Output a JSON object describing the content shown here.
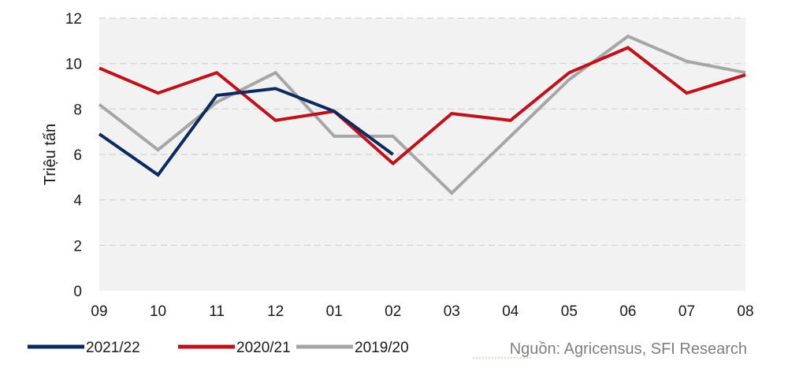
{
  "chart_data": {
    "type": "line",
    "ylabel": "Triệu tấn",
    "ylim": [
      0,
      12
    ],
    "yticks": [
      "0",
      "2",
      "4",
      "6",
      "8",
      "10",
      "12"
    ],
    "categories": [
      "09",
      "10",
      "11",
      "12",
      "01",
      "02",
      "03",
      "04",
      "05",
      "06",
      "07",
      "08"
    ],
    "grid": "horizontal-dashed",
    "legend_position": "bottom-left",
    "series": [
      {
        "name": "2021/22",
        "color": "#0d2a5e",
        "values": [
          6.9,
          5.1,
          8.6,
          8.9,
          7.9,
          6.0,
          null,
          null,
          null,
          null,
          null,
          null
        ]
      },
      {
        "name": "2020/21",
        "color": "#c0101a",
        "values": [
          9.8,
          8.7,
          9.6,
          7.5,
          7.9,
          5.6,
          7.8,
          7.5,
          9.6,
          10.7,
          8.7,
          9.5
        ]
      },
      {
        "name": "2019/20",
        "color": "#a6a6a6",
        "values": [
          8.2,
          6.2,
          8.3,
          9.6,
          6.8,
          6.8,
          4.3,
          6.8,
          9.3,
          11.2,
          10.1,
          9.6
        ]
      }
    ],
    "source": "Nguồn: Agricensus, SFI Research"
  },
  "colors": {
    "plot_background": "#f2f2f2",
    "gridline": "#d0d0d0"
  }
}
